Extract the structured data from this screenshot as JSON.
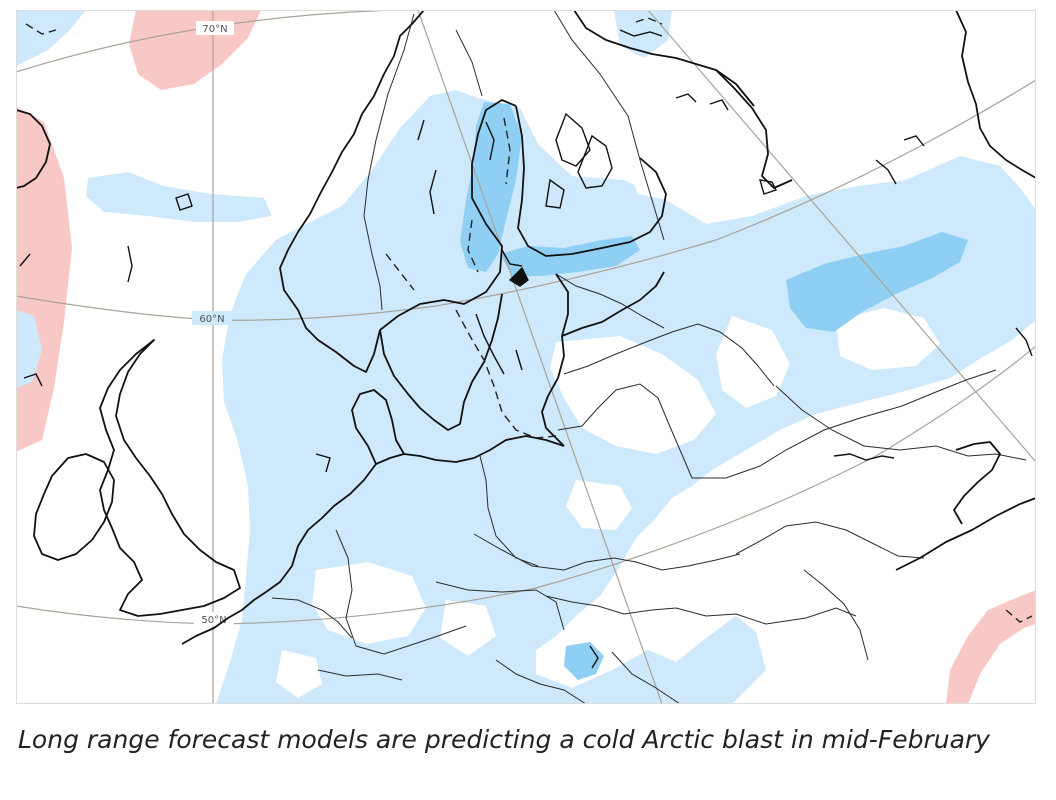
{
  "map": {
    "graticule_labels": [
      "70°N",
      "60°N",
      "50°N"
    ],
    "legend_colors": {
      "cold_anomaly": "#cde9fb",
      "strong_cold_anomaly": "#8fcff4",
      "warm_anomaly": "#f8c8c6"
    }
  },
  "caption": "Long range forecast models are predicting a cold Arctic blast in mid-February"
}
